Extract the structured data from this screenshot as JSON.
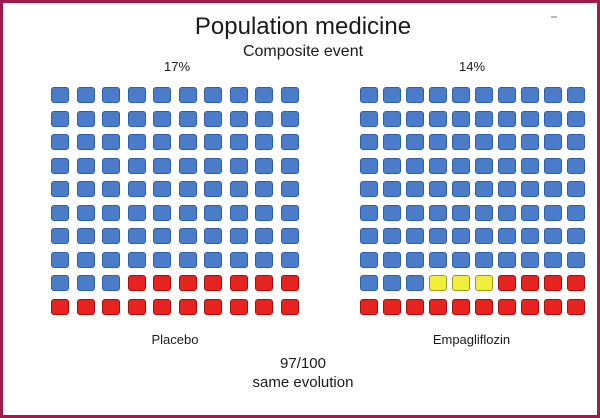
{
  "title": "Population medicine",
  "subtitle": "Composite event",
  "colors": {
    "frame": "#a01a4c",
    "no_event": "#4a7cc9",
    "event": "#e8221f",
    "prevented_event": "#f0ee3a"
  },
  "groups": [
    {
      "name": "Placebo",
      "percent_label": "17%",
      "total": 100,
      "red": 17,
      "yellow": 0
    },
    {
      "name": "Empagliflozin",
      "percent_label": "14%",
      "total": 100,
      "red": 14,
      "yellow": 3
    }
  ],
  "footer": {
    "line1": "97/100",
    "line2": "same evolution"
  }
}
